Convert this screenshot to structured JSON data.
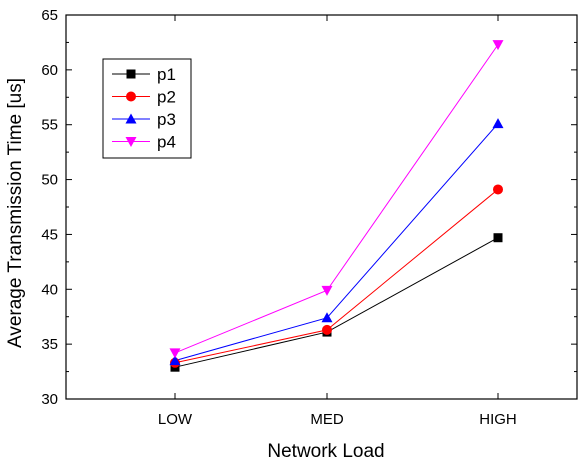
{
  "chart_data": {
    "type": "line",
    "categories": [
      "LOW",
      "MED",
      "HIGH"
    ],
    "xlabel": "Network Load",
    "ylabel": "Average Transmission Time [us]",
    "ylim": [
      30,
      65
    ],
    "yticks": [
      30,
      35,
      40,
      45,
      50,
      55,
      60,
      65
    ],
    "grid": false,
    "legend_position": "top-left",
    "series": [
      {
        "name": "p1",
        "values": [
          32.9,
          36.1,
          44.7
        ],
        "color": "#000000",
        "marker": "square"
      },
      {
        "name": "p2",
        "values": [
          33.3,
          36.3,
          49.1
        ],
        "color": "#ff0000",
        "marker": "circle"
      },
      {
        "name": "p3",
        "values": [
          33.5,
          37.4,
          55.1
        ],
        "color": "#0000ff",
        "marker": "triangle-up"
      },
      {
        "name": "p4",
        "values": [
          34.2,
          39.9,
          62.3
        ],
        "color": "#ff00ff",
        "marker": "triangle-down"
      }
    ]
  }
}
